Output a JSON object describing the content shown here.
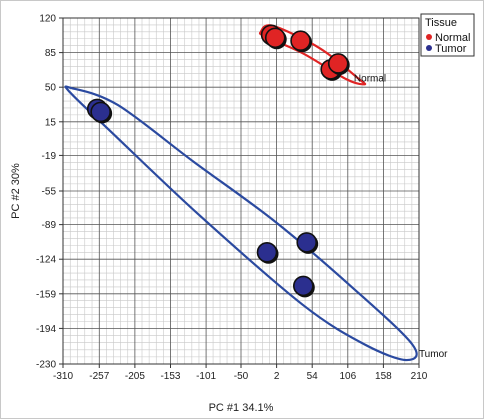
{
  "chart_data": {
    "type": "scatter",
    "title": "",
    "xlabel": "PC #1 34.1%",
    "ylabel": "PC #2  30%",
    "xlim": [
      -310,
      210
    ],
    "ylim": [
      -230,
      120
    ],
    "xticks": [
      -310,
      -257,
      -205,
      -153,
      -101,
      -50,
      2,
      54,
      106,
      158,
      210
    ],
    "xtick_labels": [
      "-310",
      "-257",
      "-205",
      "-153",
      "-101",
      "-50",
      "2",
      "54",
      "106",
      "158",
      "210"
    ],
    "yticks": [
      120,
      85,
      50,
      15,
      -19,
      -55,
      -89,
      -124,
      -159,
      -194,
      -230
    ],
    "ytick_labels": [
      "120",
      "85",
      "50",
      "15",
      "-19",
      "-55",
      "-89",
      "-124",
      "-159",
      "-194",
      "-230"
    ],
    "grid": true,
    "legend": {
      "title": "Tissue",
      "placement": "top-right",
      "entries": [
        "Normal",
        "Tumor"
      ]
    },
    "series": [
      {
        "name": "Normal",
        "color": "#e02424",
        "points": [
          [
            -6,
            103
          ],
          [
            0,
            100
          ],
          [
            37,
            97
          ],
          [
            81,
            68
          ],
          [
            92,
            74
          ]
        ]
      },
      {
        "name": "Tumor",
        "color": "#2b2f8f",
        "points": [
          [
            -260,
            28
          ],
          [
            -255,
            25
          ],
          [
            -12,
            -117
          ],
          [
            46,
            -107
          ],
          [
            41,
            -151
          ]
        ]
      }
    ],
    "ellipses": [
      {
        "label": "Normal",
        "color": "#e02424",
        "points": [
          [
            -21,
            106
          ],
          [
            -3,
            112
          ],
          [
            66,
            89
          ],
          [
            121,
            59
          ],
          [
            130,
            53
          ],
          [
            104,
            58
          ],
          [
            41,
            84
          ],
          [
            -14,
            101
          ]
        ]
      },
      {
        "label": "Tumor",
        "color": "#2b4aa0",
        "points": [
          [
            -297,
            49
          ],
          [
            -230,
            32
          ],
          [
            -120,
            -25
          ],
          [
            -2,
            -85
          ],
          [
            110,
            -151
          ],
          [
            200,
            -210
          ],
          [
            192,
            -226
          ],
          [
            130,
            -210
          ],
          [
            40,
            -170
          ],
          [
            -110,
            -80
          ],
          [
            -240,
            5
          ],
          [
            -300,
            45
          ]
        ]
      }
    ],
    "annotations": [
      {
        "text": "Normal",
        "x": 112,
        "y": 60
      },
      {
        "text": "Tumor",
        "x": 207,
        "y": -219
      }
    ],
    "colors": {
      "normal": "#e02424",
      "tumor": "#2b2f8f",
      "grid_major": "#555555",
      "grid_minor": "#c8c8c8"
    }
  }
}
